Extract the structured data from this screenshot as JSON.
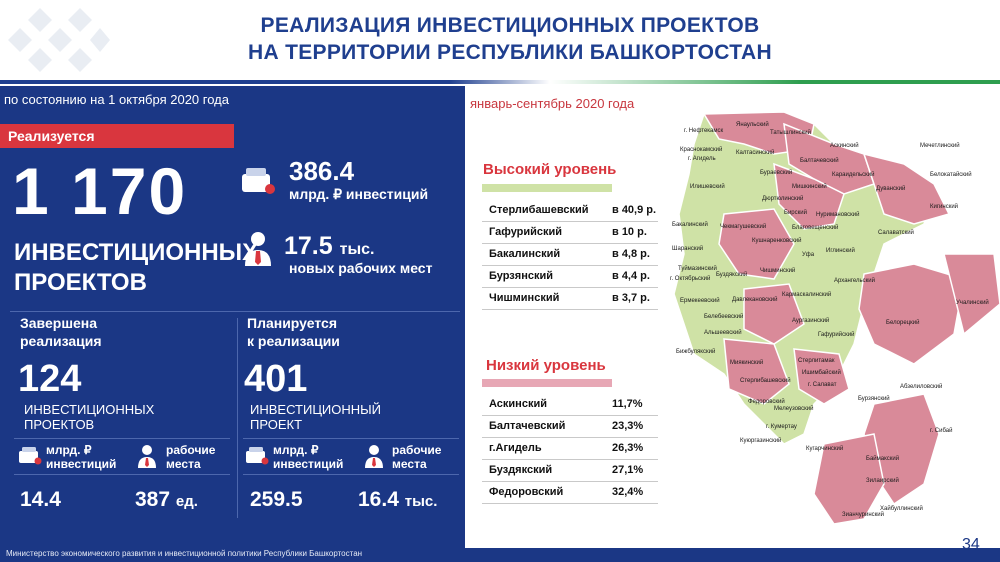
{
  "header": {
    "title_line1": "РЕАЛИЗАЦИЯ ИНВЕСТИЦИОННЫХ ПРОЕКТОВ",
    "title_line2": "НА ТЕРРИТОРИИ РЕСПУБЛИКИ БАШКОРТОСТАН"
  },
  "left": {
    "as_of": "по состоянию на 1 октября 2020 года",
    "status_label": "Реализуется",
    "projects_count": "1 170",
    "projects_word_line1": "ИНВЕСТИЦИОННЫХ",
    "projects_word_line2": "ПРОЕКТОВ",
    "investments_value": "386.4",
    "investments_label": "млрд. ₽ инвестиций",
    "jobs_value": "17.5",
    "jobs_unit": "тыс.",
    "jobs_label": "новых рабочих мест",
    "completed": {
      "title_line1": "Завершена",
      "title_line2": "реализация",
      "count": "124",
      "sub_line1": "ИНВЕСТИЦИОННЫХ",
      "sub_line2": "ПРОЕКТОВ",
      "inv_label_line1": "млрд. ₽",
      "inv_label_line2": "инвестиций",
      "jobs_label_line1": "рабочие",
      "jobs_label_line2": "места",
      "inv_value": "14.4",
      "jobs_value": "387",
      "jobs_unit": "ед."
    },
    "planned": {
      "title_line1": "Планируется",
      "title_line2": "к реализации",
      "count": "401",
      "sub_line1": "ИНВЕСТИЦИОННЫЙ",
      "sub_line2": "ПРОЕКТ",
      "inv_label_line1": "млрд. ₽",
      "inv_label_line2": "инвестиций",
      "jobs_label_line1": "рабочие",
      "jobs_label_line2": "места",
      "inv_value": "259.5",
      "jobs_value": "16.4",
      "jobs_unit": "тыс."
    }
  },
  "right": {
    "period": "январь-сентябрь 2020 года",
    "high_title": "Высокий уровень",
    "high_rows": [
      {
        "name": "Стерлибашевский",
        "value": "в 40,9 р."
      },
      {
        "name": "Гафурийский",
        "value": "в 10 р."
      },
      {
        "name": "Бакалинский",
        "value": "в 4,8 р."
      },
      {
        "name": "Бурзянский",
        "value": "в 4,4 р."
      },
      {
        "name": "Чишминский",
        "value": "в 3,7 р."
      }
    ],
    "low_title": "Низкий уровень",
    "low_rows": [
      {
        "name": "Аскинский",
        "value": "11,7%"
      },
      {
        "name": "Балтачевский",
        "value": "23,3%"
      },
      {
        "name": "г.Агидель",
        "value": "26,3%"
      },
      {
        "name": "Буздякский",
        "value": "27,1%"
      },
      {
        "name": "Федоровский",
        "value": "32,4%"
      }
    ]
  },
  "map": {
    "colors": {
      "high": "#cfe2a6",
      "low": "#d98a99"
    },
    "labels": [
      "г. Нефтекамск",
      "Янаульский",
      "Татышлинский",
      "Краснокамский",
      "г. Агидель",
      "Калтасинский",
      "Аскинский",
      "Балтачевский",
      "Мечетлинский",
      "Илишевский",
      "Бураевский",
      "Караидельский",
      "Мишкинский",
      "Белокатайский",
      "Дюртюлинский",
      "Дуванский",
      "Кигинский",
      "Бирский",
      "Нуримановский",
      "Бакалинский",
      "Чекмагушевский",
      "Благовещенский",
      "Салаватский",
      "Кушнаренковский",
      "Иглинский",
      "Шаранский",
      "Буздякский",
      "Уфа",
      "Туймазинский",
      "г. Октябрьский",
      "Чишминский",
      "Архангельский",
      "Ермекеевский",
      "Давлекановский",
      "Кармаскалинский",
      "Учалинский",
      "Белебеевский",
      "Альшеевский",
      "Аургазинский",
      "Белорецкий",
      "Гафурийский",
      "Бижбулякский",
      "Миякинский",
      "Стерлитамак",
      "Стерлибашевский",
      "Ишимбайский",
      "Абзелиловский",
      "Федоровский",
      "г. Салават",
      "Мелеузовский",
      "Бурзянский",
      "г. Кумертау",
      "Куюргазинский",
      "г. Сибай",
      "Кугарчинский",
      "Баймакский",
      "Зилаирский",
      "Зианчуринский",
      "Хайбуллинский"
    ]
  },
  "footer": {
    "ministry": "Министерство экономического развития и инвестиционной политики Республики Башкортостан",
    "page": "34"
  }
}
